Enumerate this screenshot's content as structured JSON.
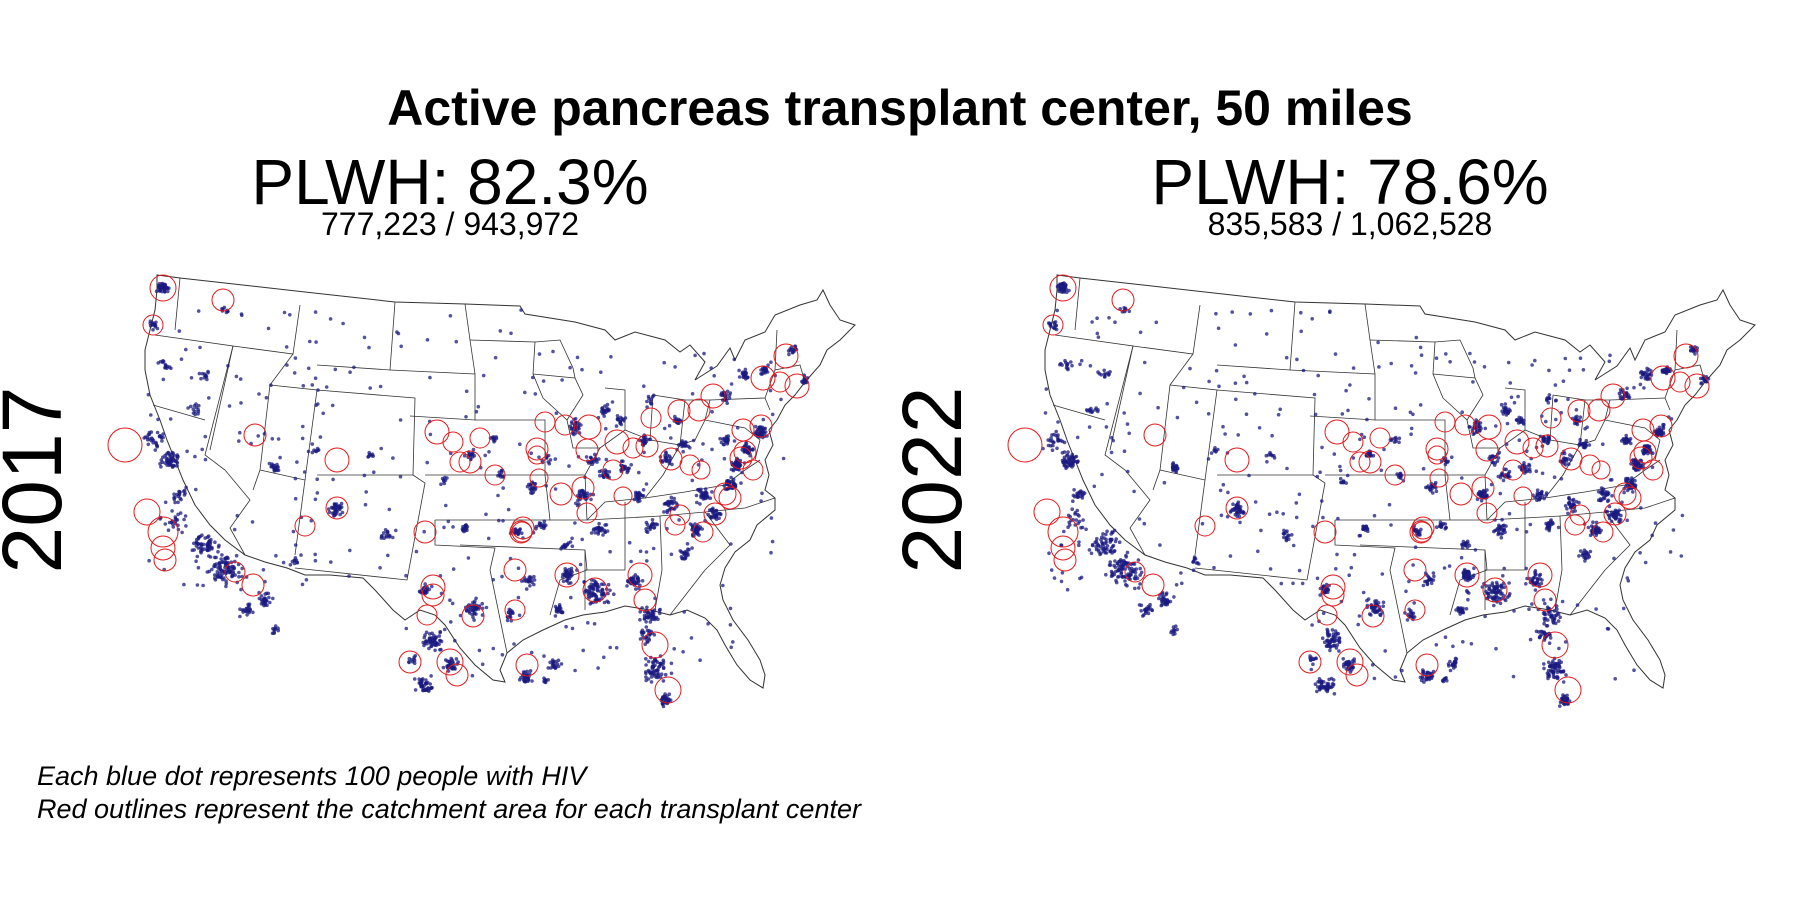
{
  "title": "Active pancreas transplant center, 50 miles",
  "panels": [
    {
      "year": "2017",
      "pct_label": "PLWH: 82.3%",
      "counts_label": "777,223 / 943,972"
    },
    {
      "year": "2022",
      "pct_label": "PLWH: 78.6%",
      "counts_label": "835,583 / 1,062,528"
    }
  ],
  "notes": [
    "Each blue dot represents 100 people with HIV",
    "Red outlines represent the catchment area for each transplant center"
  ],
  "colors": {
    "dot": "#1a1a80",
    "catchment_outline": "#e31a1c",
    "state_border": "#333333"
  }
}
